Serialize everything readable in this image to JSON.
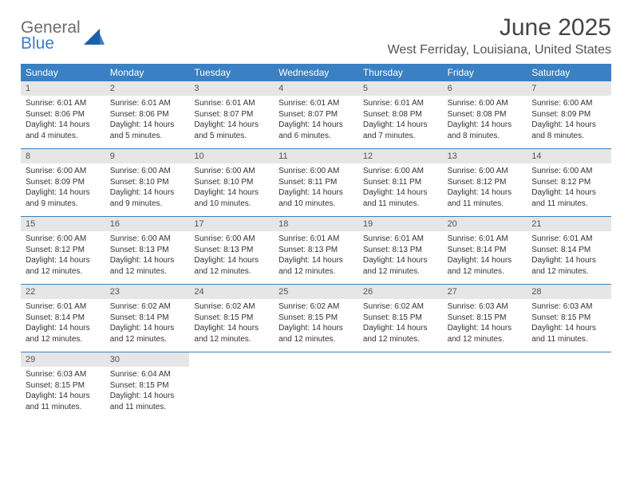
{
  "brand": {
    "line1": "General",
    "line2": "Blue"
  },
  "title": "June 2025",
  "location": "West Ferriday, Louisiana, United States",
  "accent_color": "#3a80c3",
  "daynum_bg": "#e6e6e6",
  "day_names": [
    "Sunday",
    "Monday",
    "Tuesday",
    "Wednesday",
    "Thursday",
    "Friday",
    "Saturday"
  ],
  "weeks": [
    [
      {
        "n": "1",
        "sr": "Sunrise: 6:01 AM",
        "ss": "Sunset: 8:06 PM",
        "dl1": "Daylight: 14 hours",
        "dl2": "and 4 minutes."
      },
      {
        "n": "2",
        "sr": "Sunrise: 6:01 AM",
        "ss": "Sunset: 8:06 PM",
        "dl1": "Daylight: 14 hours",
        "dl2": "and 5 minutes."
      },
      {
        "n": "3",
        "sr": "Sunrise: 6:01 AM",
        "ss": "Sunset: 8:07 PM",
        "dl1": "Daylight: 14 hours",
        "dl2": "and 5 minutes."
      },
      {
        "n": "4",
        "sr": "Sunrise: 6:01 AM",
        "ss": "Sunset: 8:07 PM",
        "dl1": "Daylight: 14 hours",
        "dl2": "and 6 minutes."
      },
      {
        "n": "5",
        "sr": "Sunrise: 6:01 AM",
        "ss": "Sunset: 8:08 PM",
        "dl1": "Daylight: 14 hours",
        "dl2": "and 7 minutes."
      },
      {
        "n": "6",
        "sr": "Sunrise: 6:00 AM",
        "ss": "Sunset: 8:08 PM",
        "dl1": "Daylight: 14 hours",
        "dl2": "and 8 minutes."
      },
      {
        "n": "7",
        "sr": "Sunrise: 6:00 AM",
        "ss": "Sunset: 8:09 PM",
        "dl1": "Daylight: 14 hours",
        "dl2": "and 8 minutes."
      }
    ],
    [
      {
        "n": "8",
        "sr": "Sunrise: 6:00 AM",
        "ss": "Sunset: 8:09 PM",
        "dl1": "Daylight: 14 hours",
        "dl2": "and 9 minutes."
      },
      {
        "n": "9",
        "sr": "Sunrise: 6:00 AM",
        "ss": "Sunset: 8:10 PM",
        "dl1": "Daylight: 14 hours",
        "dl2": "and 9 minutes."
      },
      {
        "n": "10",
        "sr": "Sunrise: 6:00 AM",
        "ss": "Sunset: 8:10 PM",
        "dl1": "Daylight: 14 hours",
        "dl2": "and 10 minutes."
      },
      {
        "n": "11",
        "sr": "Sunrise: 6:00 AM",
        "ss": "Sunset: 8:11 PM",
        "dl1": "Daylight: 14 hours",
        "dl2": "and 10 minutes."
      },
      {
        "n": "12",
        "sr": "Sunrise: 6:00 AM",
        "ss": "Sunset: 8:11 PM",
        "dl1": "Daylight: 14 hours",
        "dl2": "and 11 minutes."
      },
      {
        "n": "13",
        "sr": "Sunrise: 6:00 AM",
        "ss": "Sunset: 8:12 PM",
        "dl1": "Daylight: 14 hours",
        "dl2": "and 11 minutes."
      },
      {
        "n": "14",
        "sr": "Sunrise: 6:00 AM",
        "ss": "Sunset: 8:12 PM",
        "dl1": "Daylight: 14 hours",
        "dl2": "and 11 minutes."
      }
    ],
    [
      {
        "n": "15",
        "sr": "Sunrise: 6:00 AM",
        "ss": "Sunset: 8:12 PM",
        "dl1": "Daylight: 14 hours",
        "dl2": "and 12 minutes."
      },
      {
        "n": "16",
        "sr": "Sunrise: 6:00 AM",
        "ss": "Sunset: 8:13 PM",
        "dl1": "Daylight: 14 hours",
        "dl2": "and 12 minutes."
      },
      {
        "n": "17",
        "sr": "Sunrise: 6:00 AM",
        "ss": "Sunset: 8:13 PM",
        "dl1": "Daylight: 14 hours",
        "dl2": "and 12 minutes."
      },
      {
        "n": "18",
        "sr": "Sunrise: 6:01 AM",
        "ss": "Sunset: 8:13 PM",
        "dl1": "Daylight: 14 hours",
        "dl2": "and 12 minutes."
      },
      {
        "n": "19",
        "sr": "Sunrise: 6:01 AM",
        "ss": "Sunset: 8:13 PM",
        "dl1": "Daylight: 14 hours",
        "dl2": "and 12 minutes."
      },
      {
        "n": "20",
        "sr": "Sunrise: 6:01 AM",
        "ss": "Sunset: 8:14 PM",
        "dl1": "Daylight: 14 hours",
        "dl2": "and 12 minutes."
      },
      {
        "n": "21",
        "sr": "Sunrise: 6:01 AM",
        "ss": "Sunset: 8:14 PM",
        "dl1": "Daylight: 14 hours",
        "dl2": "and 12 minutes."
      }
    ],
    [
      {
        "n": "22",
        "sr": "Sunrise: 6:01 AM",
        "ss": "Sunset: 8:14 PM",
        "dl1": "Daylight: 14 hours",
        "dl2": "and 12 minutes."
      },
      {
        "n": "23",
        "sr": "Sunrise: 6:02 AM",
        "ss": "Sunset: 8:14 PM",
        "dl1": "Daylight: 14 hours",
        "dl2": "and 12 minutes."
      },
      {
        "n": "24",
        "sr": "Sunrise: 6:02 AM",
        "ss": "Sunset: 8:15 PM",
        "dl1": "Daylight: 14 hours",
        "dl2": "and 12 minutes."
      },
      {
        "n": "25",
        "sr": "Sunrise: 6:02 AM",
        "ss": "Sunset: 8:15 PM",
        "dl1": "Daylight: 14 hours",
        "dl2": "and 12 minutes."
      },
      {
        "n": "26",
        "sr": "Sunrise: 6:02 AM",
        "ss": "Sunset: 8:15 PM",
        "dl1": "Daylight: 14 hours",
        "dl2": "and 12 minutes."
      },
      {
        "n": "27",
        "sr": "Sunrise: 6:03 AM",
        "ss": "Sunset: 8:15 PM",
        "dl1": "Daylight: 14 hours",
        "dl2": "and 12 minutes."
      },
      {
        "n": "28",
        "sr": "Sunrise: 6:03 AM",
        "ss": "Sunset: 8:15 PM",
        "dl1": "Daylight: 14 hours",
        "dl2": "and 11 minutes."
      }
    ],
    [
      {
        "n": "29",
        "sr": "Sunrise: 6:03 AM",
        "ss": "Sunset: 8:15 PM",
        "dl1": "Daylight: 14 hours",
        "dl2": "and 11 minutes."
      },
      {
        "n": "30",
        "sr": "Sunrise: 6:04 AM",
        "ss": "Sunset: 8:15 PM",
        "dl1": "Daylight: 14 hours",
        "dl2": "and 11 minutes."
      },
      {
        "empty": true
      },
      {
        "empty": true
      },
      {
        "empty": true
      },
      {
        "empty": true
      },
      {
        "empty": true
      }
    ]
  ]
}
